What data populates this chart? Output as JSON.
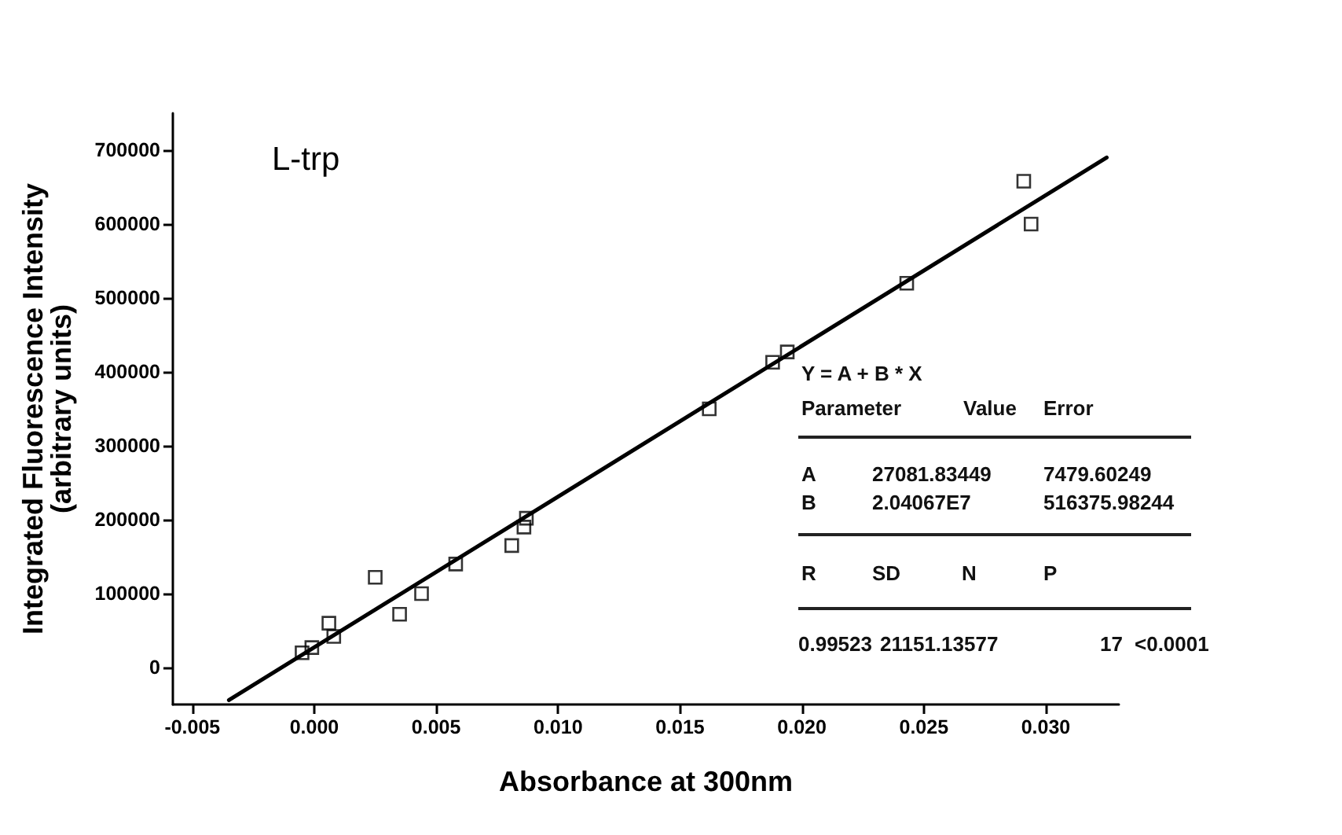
{
  "chart_data": {
    "type": "scatter",
    "title": "L-trp",
    "xlabel": "Absorbance at 300nm",
    "ylabel": "Integrated Fluorescence Intensity\n(arbitrary units)",
    "marker": "square",
    "grid": false,
    "xlim": [
      -0.0058,
      0.033
    ],
    "xticks": [
      {
        "value": -0.005,
        "label": "-0.005"
      },
      {
        "value": 0,
        "label": "0.000"
      },
      {
        "value": 0.005,
        "label": "0.005"
      },
      {
        "value": 0.01,
        "label": "0.010"
      },
      {
        "value": 0.015,
        "label": "0.015"
      },
      {
        "value": 0.02,
        "label": "0.020"
      },
      {
        "value": 0.025,
        "label": "0.025"
      },
      {
        "value": 0.03,
        "label": "0.030"
      }
    ],
    "ylim": [
      -50000,
      750000
    ],
    "yticks": [
      0,
      100000,
      200000,
      300000,
      400000,
      500000,
      600000,
      700000
    ],
    "series": [
      {
        "color": "#000000",
        "x": [
          -0.0005,
          -0.0001,
          0.0006,
          0.0008,
          0.0025,
          0.0035,
          0.0044,
          0.0058,
          0.0081,
          0.0086,
          0.0087,
          0.0162,
          0.0188,
          0.0194,
          0.0243,
          0.0291,
          0.0294
        ],
        "values": [
          20000,
          27000,
          60000,
          42000,
          122000,
          72000,
          100000,
          140000,
          165000,
          190000,
          202000,
          350000,
          413000,
          427000,
          520000,
          658000,
          600000
        ]
      },
      {
        "type": "line",
        "color": "#000000",
        "marker": "none",
        "x": [
          -0.0035,
          0.0325
        ],
        "values": [
          -44000,
          690000
        ]
      }
    ],
    "annotations": [
      "Y = A + B * X",
      "Parameter",
      "Value",
      "Error",
      "A",
      "27081.83449",
      "7479.60249",
      "B",
      "2.04067E7",
      "516375.98244",
      "R",
      "SD",
      "N",
      "P",
      "0.99523",
      "21151.13577",
      "17",
      "<0.0001"
    ]
  }
}
